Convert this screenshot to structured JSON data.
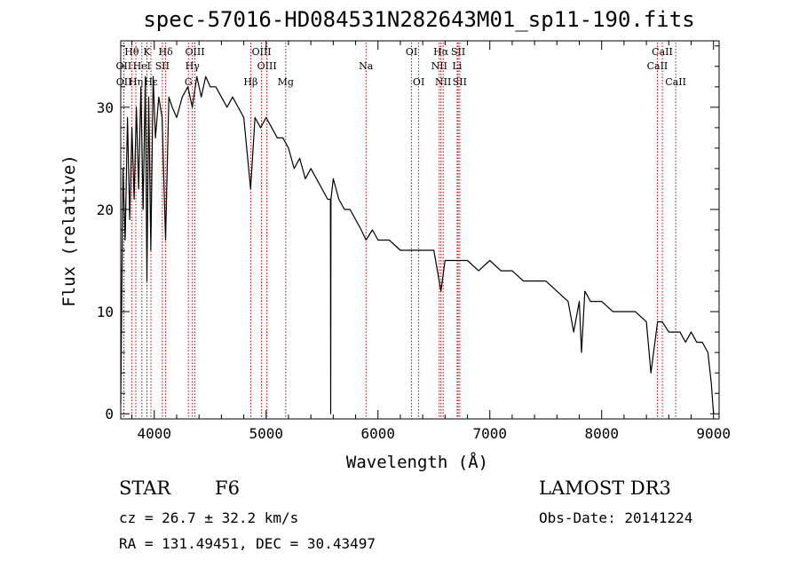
{
  "chart_data": {
    "type": "line",
    "title": "spec-57016-HD084531N282643M01_sp11-190.fits",
    "xlabel": "Wavelength (Å)",
    "ylabel": "Flux (relative)",
    "xlim": [
      3700,
      9050
    ],
    "ylim": [
      -0.5,
      36.5
    ],
    "xticks": [
      4000,
      5000,
      6000,
      7000,
      8000,
      9000
    ],
    "yticks": [
      0,
      10,
      20,
      30
    ],
    "grid": false,
    "series": [
      {
        "name": "spectrum",
        "x": [
          3700,
          3720,
          3740,
          3760,
          3780,
          3800,
          3820,
          3840,
          3860,
          3880,
          3900,
          3920,
          3934,
          3950,
          3969,
          3990,
          4010,
          4040,
          4070,
          4101,
          4130,
          4160,
          4200,
          4250,
          4300,
          4340,
          4380,
          4420,
          4460,
          4500,
          4550,
          4600,
          4650,
          4700,
          4750,
          4800,
          4861,
          4900,
          4950,
          5000,
          5050,
          5100,
          5150,
          5200,
          5250,
          5300,
          5350,
          5400,
          5450,
          5500,
          5550,
          5575,
          5577,
          5580,
          5600,
          5650,
          5700,
          5750,
          5800,
          5850,
          5893,
          5950,
          6000,
          6100,
          6200,
          6300,
          6400,
          6500,
          6563,
          6600,
          6700,
          6800,
          6900,
          7000,
          7100,
          7200,
          7300,
          7400,
          7500,
          7600,
          7700,
          7750,
          7800,
          7820,
          7850,
          7900,
          8000,
          8100,
          8200,
          8300,
          8400,
          8440,
          8500,
          8542,
          8600,
          8662,
          8700,
          8750,
          8800,
          8850,
          8900,
          8950,
          8980,
          9000
        ],
        "values": [
          1,
          24,
          17,
          29,
          19,
          28,
          21,
          30,
          22,
          32,
          20,
          33,
          13,
          31,
          16,
          33,
          27,
          31,
          29,
          17,
          31,
          30,
          29,
          31,
          32,
          30,
          33,
          31,
          33,
          32,
          32,
          31,
          30,
          31,
          30,
          29,
          22,
          29,
          28,
          29,
          28,
          27,
          27,
          26,
          24,
          25,
          23,
          24,
          23,
          22,
          21,
          21,
          0,
          21,
          23,
          21,
          20,
          20,
          19,
          18,
          17,
          18,
          17,
          17,
          16,
          16,
          16,
          16,
          12,
          15,
          15,
          15,
          14,
          15,
          14,
          14,
          13,
          13,
          13,
          12,
          11,
          8,
          11,
          6,
          12,
          11,
          11,
          10,
          10,
          10,
          9,
          4,
          9,
          9,
          8,
          8,
          8,
          7,
          8,
          7,
          7,
          6,
          3,
          0
        ]
      }
    ],
    "lines": [
      {
        "label": "Hθ",
        "x": 3798,
        "row": 0
      },
      {
        "label": "OII",
        "x": 3727,
        "row": 1
      },
      {
        "label": "OII",
        "x": 3729,
        "row": 2
      },
      {
        "label": "Hη",
        "x": 3835,
        "row": 2
      },
      {
        "label": "HeI",
        "x": 3889,
        "row": 1
      },
      {
        "label": "Hε",
        "x": 3970,
        "row": 2
      },
      {
        "label": "K",
        "x": 3934,
        "row": 0
      },
      {
        "label": "SII",
        "x": 4072,
        "row": 1
      },
      {
        "label": "Hδ",
        "x": 4102,
        "row": 0
      },
      {
        "label": "OIII",
        "x": 4363,
        "row": 0
      },
      {
        "label": "Hγ",
        "x": 4341,
        "row": 1
      },
      {
        "label": "G",
        "x": 4305,
        "row": 2
      },
      {
        "label": "Hβ",
        "x": 4862,
        "row": 2
      },
      {
        "label": "OIII",
        "x": 4959,
        "row": 0
      },
      {
        "label": "OIII",
        "x": 5007,
        "row": 1
      },
      {
        "label": "Mg",
        "x": 5175,
        "row": 2
      },
      {
        "label": "Na",
        "x": 5893,
        "row": 1
      },
      {
        "label": "OI",
        "x": 6300,
        "row": 0
      },
      {
        "label": "OI",
        "x": 6364,
        "row": 2
      },
      {
        "label": "Hα",
        "x": 6563,
        "row": 0
      },
      {
        "label": "NII",
        "x": 6548,
        "row": 1
      },
      {
        "label": "NII",
        "x": 6583,
        "row": 2
      },
      {
        "label": "SII",
        "x": 6717,
        "row": 0
      },
      {
        "label": "Li",
        "x": 6708,
        "row": 1
      },
      {
        "label": "SII",
        "x": 6731,
        "row": 2
      },
      {
        "label": "CaII",
        "x": 8542,
        "row": 0
      },
      {
        "label": "CaII",
        "x": 8498,
        "row": 1
      },
      {
        "label": "CaII",
        "x": 8662,
        "row": 2
      }
    ]
  },
  "info": {
    "object_class": "STAR",
    "subclass": "F6",
    "survey": "LAMOST DR3",
    "cz": "cz = 26.7 ± 32.2 km/s",
    "obs_date": "Obs-Date: 20141224",
    "coords": "RA = 131.49451, DEC =  30.43497"
  }
}
